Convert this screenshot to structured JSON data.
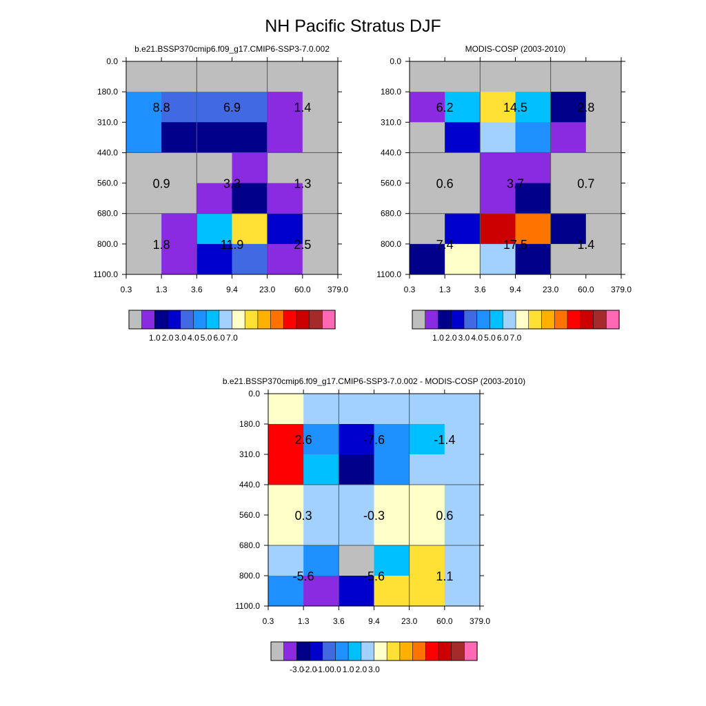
{
  "title": "NH Pacific Stratus DJF",
  "palette_colors": [
    "#bebebe",
    "#8a2be2",
    "#00008b",
    "#0000cd",
    "#4169e1",
    "#1e90ff",
    "#00bfff",
    "#a3d1ff",
    "#ffffc8",
    "#ffe135",
    "#ffb000",
    "#ff7400",
    "#ff0000",
    "#cd0000",
    "#a52a2a",
    "#ff69b4"
  ],
  "chart_data": [
    {
      "type": "heatmap",
      "title": "b.e21.BSSP370cmip6.f09_g17.CMIP6-SSP3-7.0.002",
      "x_ticks": [
        "0.3",
        "1.3",
        "3.6",
        "9.4",
        "23.0",
        "60.0",
        "379.0"
      ],
      "y_ticks": [
        "0.0",
        "180.0",
        "310.0",
        "440.0",
        "560.0",
        "680.0",
        "800.0",
        "1100.0"
      ],
      "cells": [
        [
          0,
          0,
          0,
          0,
          0,
          0
        ],
        [
          5,
          4,
          4,
          4,
          1,
          0
        ],
        [
          5,
          2,
          2,
          2,
          1,
          0
        ],
        [
          0,
          0,
          0,
          1,
          0,
          0
        ],
        [
          0,
          0,
          1,
          2,
          1,
          0
        ],
        [
          0,
          1,
          6,
          9,
          3,
          0
        ],
        [
          0,
          1,
          3,
          4,
          1,
          0
        ]
      ],
      "box_labels": [
        [
          "8.8",
          "6.9",
          "1.4"
        ],
        [
          "0.9",
          "3.3",
          "1.3"
        ],
        [
          "1.8",
          "11.9",
          "2.5"
        ]
      ],
      "colorbar": {
        "labels": [
          "1.0",
          "2.0",
          "3.0",
          "4.0",
          "5.0",
          "6.0",
          "7.0"
        ]
      }
    },
    {
      "type": "heatmap",
      "title": "MODIS-COSP (2003-2010)",
      "x_ticks": [
        "0.3",
        "1.3",
        "3.6",
        "9.4",
        "23.0",
        "60.0",
        "379.0"
      ],
      "y_ticks": [
        "0.0",
        "180.0",
        "310.0",
        "440.0",
        "560.0",
        "680.0",
        "800.0",
        "1100.0"
      ],
      "cells": [
        [
          0,
          0,
          0,
          0,
          0,
          0
        ],
        [
          1,
          6,
          9,
          6,
          2,
          0
        ],
        [
          0,
          3,
          7,
          5,
          1,
          0
        ],
        [
          0,
          0,
          1,
          1,
          0,
          0
        ],
        [
          0,
          0,
          1,
          2,
          0,
          0
        ],
        [
          0,
          3,
          13,
          11,
          2,
          0
        ],
        [
          2,
          8,
          7,
          2,
          0,
          0
        ]
      ],
      "box_labels": [
        [
          "6.2",
          "14.5",
          "2.8"
        ],
        [
          "0.6",
          "3.7",
          "0.7"
        ],
        [
          "7.4",
          "17.5",
          "1.4"
        ]
      ],
      "colorbar": {
        "labels": [
          "1.0",
          "2.0",
          "3.0",
          "4.0",
          "5.0",
          "6.0",
          "7.0"
        ]
      }
    },
    {
      "type": "heatmap",
      "title": "b.e21.BSSP370cmip6.f09_g17.CMIP6-SSP3-7.0.002 - MODIS-COSP (2003-2010)",
      "x_ticks": [
        "0.3",
        "1.3",
        "3.6",
        "9.4",
        "23.0",
        "60.0",
        "379.0"
      ],
      "y_ticks": [
        "0.0",
        "180.0",
        "310.0",
        "440.0",
        "560.0",
        "680.0",
        "800.0",
        "1100.0"
      ],
      "cells": [
        [
          8,
          7,
          7,
          7,
          7,
          7
        ],
        [
          12,
          5,
          3,
          5,
          6,
          7
        ],
        [
          12,
          6,
          2,
          5,
          7,
          7
        ],
        [
          8,
          7,
          7,
          8,
          8,
          7
        ],
        [
          8,
          7,
          7,
          8,
          8,
          7
        ],
        [
          7,
          5,
          0,
          6,
          9,
          7
        ],
        [
          5,
          1,
          3,
          9,
          9,
          7
        ]
      ],
      "box_labels": [
        [
          "2.6",
          "-7.6",
          "-1.4"
        ],
        [
          "0.3",
          "-0.3",
          "0.6"
        ],
        [
          "-5.6",
          "-5.6",
          "1.1"
        ]
      ],
      "colorbar": {
        "labels": [
          "-3.0",
          "-2.0",
          "-1.0",
          "0.0",
          "1.0",
          "2.0",
          "3.0"
        ]
      }
    }
  ]
}
